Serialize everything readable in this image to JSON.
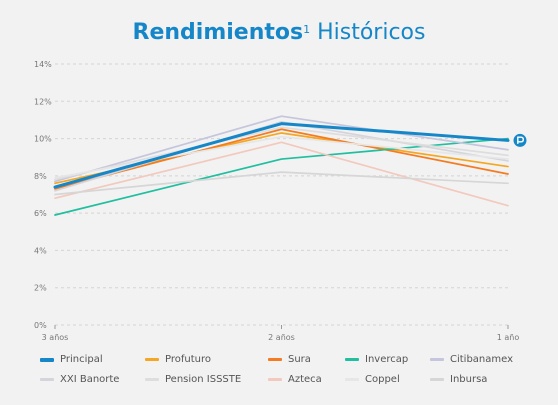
{
  "title": {
    "bold": "Rendimientos",
    "sup": "1",
    "rest": " Históricos"
  },
  "colors": {
    "title": "#1587c8",
    "grid": "#d4d4d4",
    "axis_text": "#777777",
    "legend_text": "#555555"
  },
  "chart_data": {
    "type": "line",
    "categories": [
      "3 años",
      "2 años",
      "1 año"
    ],
    "yticks": [
      "0%",
      "2%",
      "4%",
      "6%",
      "8%",
      "10%",
      "12%",
      "14%"
    ],
    "ylim": [
      0,
      14
    ],
    "grid": true,
    "legend_position": "bottom",
    "series": [
      {
        "name": "Principal",
        "color": "#1587c8",
        "values": [
          7.4,
          10.8,
          9.9
        ],
        "emphasis": true,
        "marker": "principal-logo"
      },
      {
        "name": "Profuturo",
        "color": "#f5a623",
        "values": [
          7.6,
          10.3,
          8.5
        ]
      },
      {
        "name": "Sura",
        "color": "#f47b20",
        "values": [
          7.3,
          10.5,
          8.1
        ]
      },
      {
        "name": "Invercap",
        "color": "#1fbf9f",
        "values": [
          5.9,
          8.9,
          10.0
        ]
      },
      {
        "name": "Citibanamex",
        "color": "#c5c5dd",
        "values": [
          7.7,
          11.2,
          9.4
        ]
      },
      {
        "name": "XXI Banorte",
        "color": "#d4d4dc",
        "values": [
          7.2,
          10.9,
          8.8
        ]
      },
      {
        "name": "Pension ISSSTE",
        "color": "#dddddd",
        "values": [
          7.8,
          10.6,
          9.1
        ]
      },
      {
        "name": "Azteca",
        "color": "#f3c9bd",
        "values": [
          6.8,
          9.8,
          6.4
        ]
      },
      {
        "name": "Coppel",
        "color": "#e6e6e6",
        "values": [
          7.9,
          10.1,
          8.9
        ]
      },
      {
        "name": "Inbursa",
        "color": "#d6d6d6",
        "values": [
          7.0,
          8.2,
          7.6
        ]
      }
    ]
  }
}
